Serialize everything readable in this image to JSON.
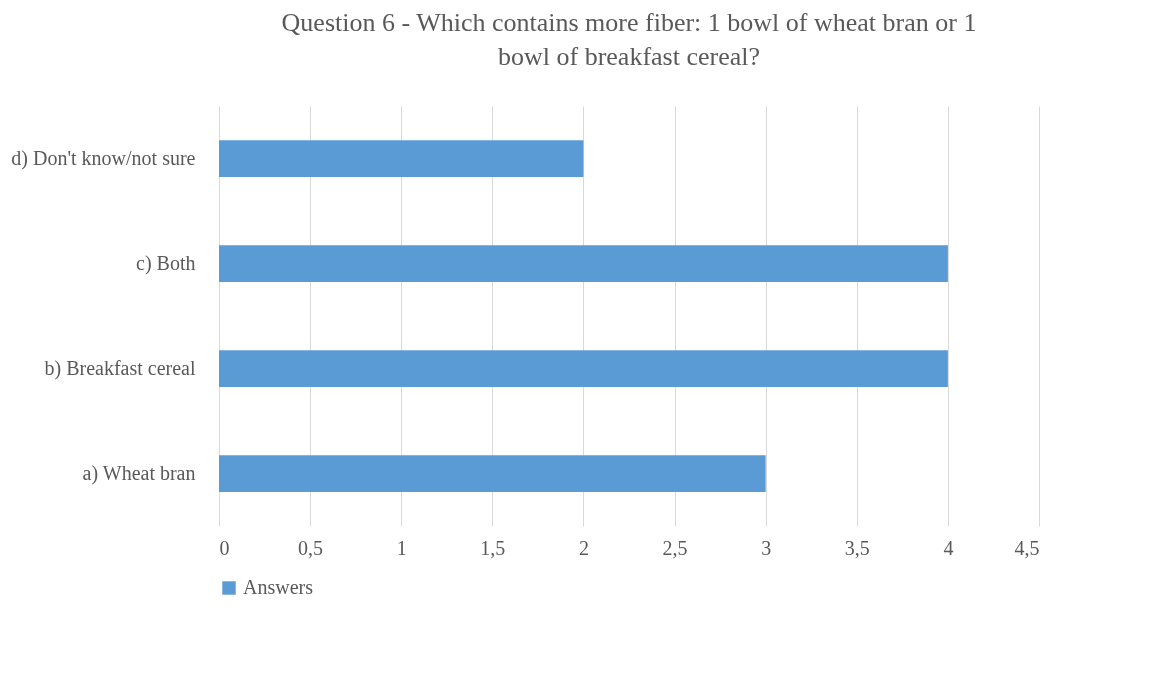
{
  "chart_data": {
    "type": "bar",
    "orientation": "horizontal",
    "title": "Question 6 - Which contains more fiber: 1 bowl of wheat bran or 1\nbowl of breakfast cereal?",
    "categories": [
      "d) Don't know/not sure",
      "c) Both",
      "b) Breakfast cereal",
      "a) Wheat bran"
    ],
    "series": [
      {
        "name": "Answers",
        "color": "#5b9bd5",
        "values": [
          2,
          4,
          4,
          3
        ]
      }
    ],
    "xlim": [
      0,
      4.5
    ],
    "xticks": [
      0,
      {
        "value": 0.5,
        "label": "0,5"
      },
      1,
      {
        "value": 1.5,
        "label": "1,5"
      },
      2,
      {
        "value": 2.5,
        "label": "2,5"
      },
      3,
      {
        "value": 3.5,
        "label": "3,5"
      },
      4,
      {
        "value": 4.5,
        "label": "4,5"
      }
    ],
    "grid": "x",
    "legend": "bottom"
  }
}
